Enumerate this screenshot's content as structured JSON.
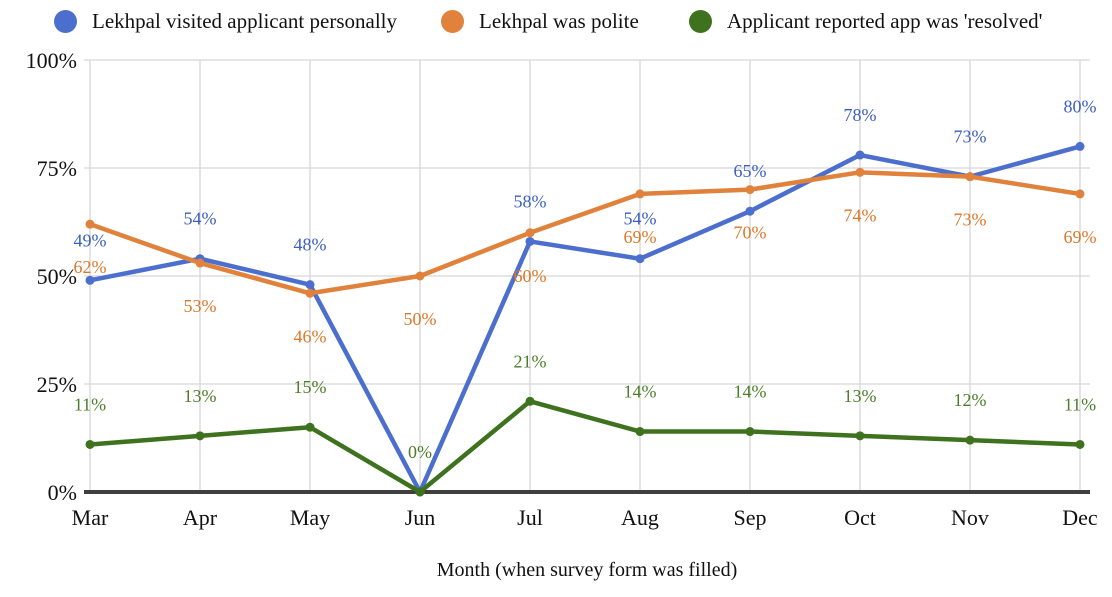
{
  "background": "#ffffff",
  "legend": {
    "position": "top",
    "items": [
      {
        "label": "Lekhpal visited applicant personally",
        "color": "#4c6fce"
      },
      {
        "label": "Lekhpal was polite",
        "color": "#e0813c"
      },
      {
        "label": "Applicant reported app was 'resolved'",
        "color": "#3e721e"
      }
    ]
  },
  "chart_data": {
    "type": "line",
    "title": "",
    "xlabel": "Month (when survey form was filled)",
    "ylabel": "",
    "x": [
      "Mar",
      "Apr",
      "May",
      "Jun",
      "Jul",
      "Aug",
      "Sep",
      "Oct",
      "Nov",
      "Dec"
    ],
    "ylim": [
      0,
      100
    ],
    "yticks": [
      "0%",
      "25%",
      "50%",
      "75%",
      "100%"
    ],
    "grid": true,
    "legend_position": "top",
    "series": [
      {
        "name": "Lekhpal visited applicant personally",
        "color": "#4c6fce",
        "label_color": "#3a5ec2",
        "values": [
          49,
          54,
          48,
          0,
          58,
          54,
          65,
          78,
          73,
          80
        ],
        "labels": [
          "49%",
          "54%",
          "48%",
          null,
          "58%",
          "54%",
          "65%",
          "78%",
          "73%",
          "80%"
        ],
        "label_side": "above"
      },
      {
        "name": "Lekhpal was polite",
        "color": "#e0813c",
        "label_color": "#dc7628",
        "values": [
          62,
          53,
          46,
          50,
          60,
          69,
          70,
          74,
          73,
          69
        ],
        "labels": [
          "62%",
          "53%",
          "46%",
          "50%",
          "60%",
          "69%",
          "70%",
          "74%",
          "73%",
          "69%"
        ],
        "label_side": "below"
      },
      {
        "name": "Applicant reported app was 'resolved'",
        "color": "#3e721e",
        "label_color": "#4c7d28",
        "values": [
          11,
          13,
          15,
          0,
          21,
          14,
          14,
          13,
          12,
          11
        ],
        "labels": [
          "11%",
          "13%",
          "15%",
          "0%",
          "21%",
          "14%",
          "14%",
          "13%",
          "12%",
          "11%"
        ],
        "label_side": "above"
      }
    ]
  }
}
